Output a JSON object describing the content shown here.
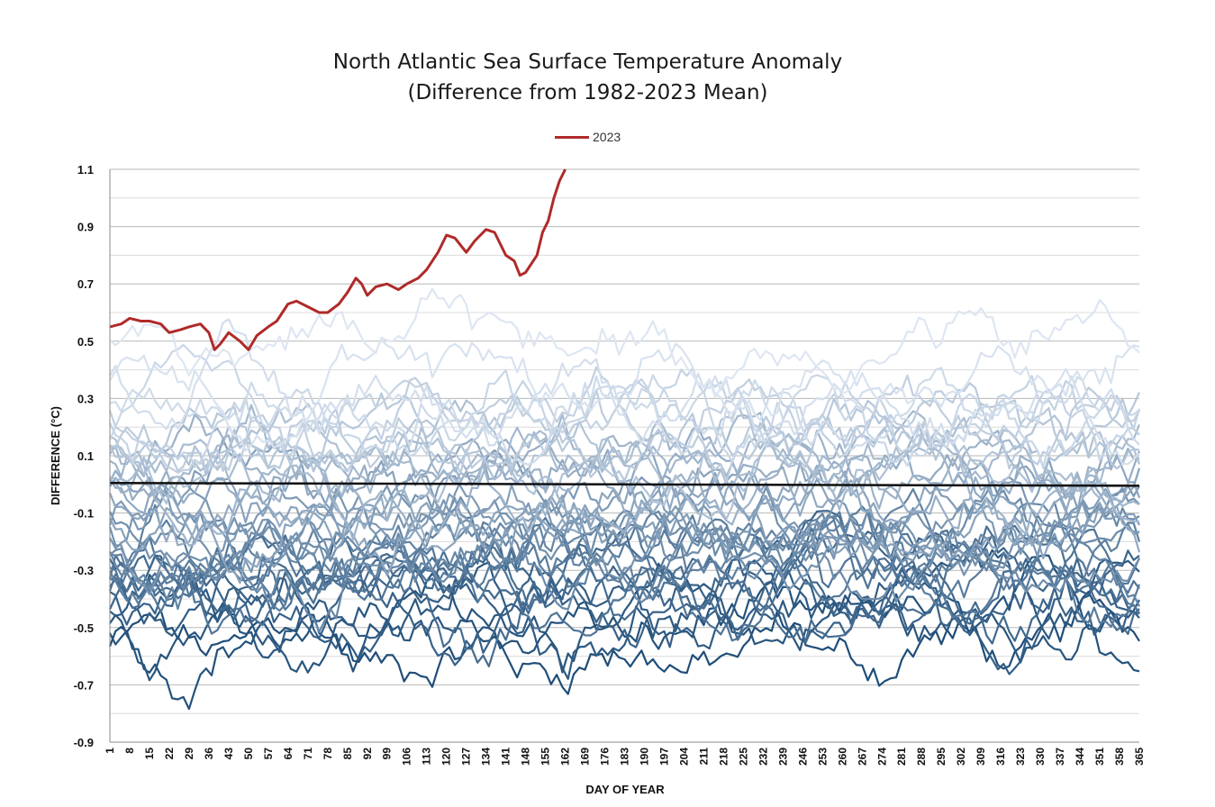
{
  "chart_data": {
    "type": "line",
    "title": "North Atlantic Sea Surface Temperature Anomaly",
    "subtitle": "(Difference from 1982-2023 Mean)",
    "xlabel": "DAY OF YEAR",
    "ylabel": "DIFFERENCE (°C)",
    "xlim": [
      1,
      365
    ],
    "ylim": [
      -0.9,
      1.1
    ],
    "y_ticks": [
      "1.1",
      "0.9",
      "0.7",
      "0.5",
      "0.3",
      "0.1",
      "-0.1",
      "-0.3",
      "-0.5",
      "-0.7",
      "-0.9"
    ],
    "x_ticks": [
      "1",
      "8",
      "15",
      "22",
      "29",
      "36",
      "43",
      "50",
      "57",
      "64",
      "71",
      "78",
      "85",
      "92",
      "99",
      "106",
      "113",
      "120",
      "127",
      "134",
      "141",
      "148",
      "155",
      "162",
      "169",
      "176",
      "183",
      "190",
      "197",
      "204",
      "211",
      "218",
      "225",
      "232",
      "239",
      "246",
      "253",
      "260",
      "267",
      "274",
      "281",
      "288",
      "295",
      "302",
      "309",
      "316",
      "323",
      "330",
      "337",
      "344",
      "351",
      "358",
      "365"
    ],
    "grid": true,
    "legend_position": "top-center",
    "highlight_color": "#b02a2a",
    "zero_line": true,
    "series": [
      {
        "name": "2023",
        "color": "#b02a2a",
        "x": [
          1,
          5,
          8,
          12,
          15,
          19,
          22,
          26,
          29,
          33,
          36,
          38,
          40,
          43,
          47,
          50,
          53,
          57,
          60,
          64,
          67,
          71,
          75,
          78,
          82,
          85,
          88,
          90,
          92,
          95,
          99,
          103,
          106,
          110,
          113,
          117,
          120,
          123,
          127,
          130,
          134,
          137,
          141,
          144,
          146,
          148,
          150,
          152,
          154,
          156,
          158,
          160,
          162
        ],
        "y": [
          0.55,
          0.56,
          0.58,
          0.57,
          0.57,
          0.56,
          0.53,
          0.54,
          0.55,
          0.56,
          0.53,
          0.47,
          0.49,
          0.53,
          0.5,
          0.47,
          0.52,
          0.55,
          0.57,
          0.63,
          0.64,
          0.62,
          0.6,
          0.6,
          0.63,
          0.67,
          0.72,
          0.7,
          0.66,
          0.69,
          0.7,
          0.68,
          0.7,
          0.72,
          0.75,
          0.81,
          0.87,
          0.86,
          0.81,
          0.85,
          0.89,
          0.88,
          0.8,
          0.78,
          0.73,
          0.74,
          0.77,
          0.8,
          0.88,
          0.92,
          1.0,
          1.06,
          1.1
        ]
      }
    ],
    "background_years": {
      "count": 41,
      "color_range": [
        "#1f4e79",
        "#dde6f2"
      ],
      "mean_anomalies": [
        -0.58,
        -0.52,
        -0.47,
        -0.46,
        -0.42,
        -0.4,
        -0.38,
        -0.36,
        -0.34,
        -0.33,
        -0.31,
        -0.29,
        -0.27,
        -0.25,
        -0.24,
        -0.22,
        -0.2,
        -0.18,
        -0.16,
        -0.14,
        -0.12,
        -0.1,
        -0.07,
        -0.05,
        -0.02,
        0.01,
        0.03,
        0.06,
        0.08,
        0.1,
        0.12,
        0.14,
        0.16,
        0.18,
        0.2,
        0.22,
        0.24,
        0.27,
        0.31,
        0.38,
        0.5
      ]
    }
  }
}
